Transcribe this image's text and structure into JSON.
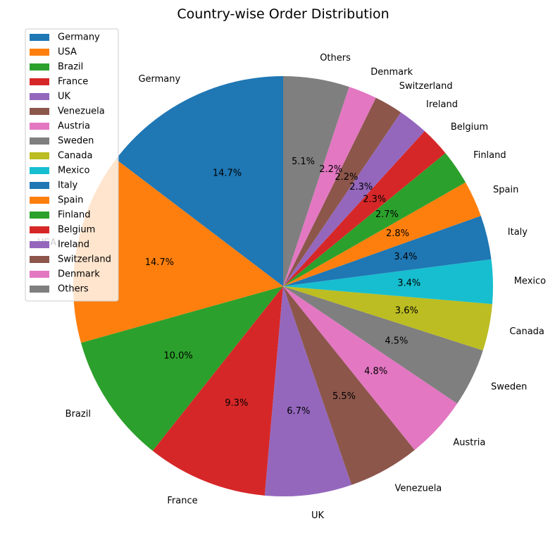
{
  "chart_data": {
    "type": "pie",
    "title": "Country-wise Order Distribution",
    "legend_position": "upper-left",
    "start_angle_deg": 90,
    "direction": "counterclockwise",
    "slices": [
      {
        "label": "Germany",
        "value": 14.7,
        "pct_label": "14.7%",
        "color": "#1f77b4"
      },
      {
        "label": "USA",
        "value": 14.7,
        "pct_label": "14.7%",
        "color": "#ff7f0e"
      },
      {
        "label": "Brazil",
        "value": 10.0,
        "pct_label": "10.0%",
        "color": "#2ca02c"
      },
      {
        "label": "France",
        "value": 9.3,
        "pct_label": "9.3%",
        "color": "#d62728"
      },
      {
        "label": "UK",
        "value": 6.7,
        "pct_label": "6.7%",
        "color": "#9467bd"
      },
      {
        "label": "Venezuela",
        "value": 5.5,
        "pct_label": "5.5%",
        "color": "#8c564b"
      },
      {
        "label": "Austria",
        "value": 4.8,
        "pct_label": "4.8%",
        "color": "#e377c2"
      },
      {
        "label": "Sweden",
        "value": 4.5,
        "pct_label": "4.5%",
        "color": "#7f7f7f"
      },
      {
        "label": "Canada",
        "value": 3.6,
        "pct_label": "3.6%",
        "color": "#bcbd22"
      },
      {
        "label": "Mexico",
        "value": 3.4,
        "pct_label": "3.4%",
        "color": "#17becf"
      },
      {
        "label": "Italy",
        "value": 3.4,
        "pct_label": "3.4%",
        "color": "#1f77b4"
      },
      {
        "label": "Spain",
        "value": 2.8,
        "pct_label": "2.8%",
        "color": "#ff7f0e"
      },
      {
        "label": "Finland",
        "value": 2.7,
        "pct_label": "2.7%",
        "color": "#2ca02c"
      },
      {
        "label": "Belgium",
        "value": 2.3,
        "pct_label": "2.3%",
        "color": "#d62728"
      },
      {
        "label": "Ireland",
        "value": 2.3,
        "pct_label": "2.3%",
        "color": "#9467bd"
      },
      {
        "label": "Switzerland",
        "value": 2.2,
        "pct_label": "2.2%",
        "color": "#8c564b"
      },
      {
        "label": "Denmark",
        "value": 2.2,
        "pct_label": "2.2%",
        "color": "#e377c2"
      },
      {
        "label": "Others",
        "value": 5.1,
        "pct_label": "5.1%",
        "color": "#7f7f7f"
      }
    ]
  }
}
